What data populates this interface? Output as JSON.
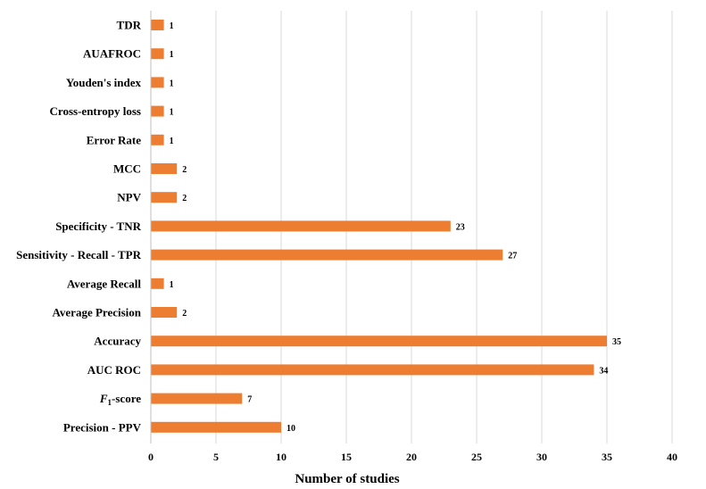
{
  "chart_data": {
    "type": "bar",
    "orientation": "horizontal",
    "categories": [
      "TDR",
      "AUAFROC",
      "Youden's index",
      "Cross-entropy loss",
      "Error Rate",
      "MCC",
      "NPV",
      "Specificity - TNR",
      "Sensitivity - Recall - TPR",
      "Average Recall",
      "Average Precision",
      "Accuracy",
      "AUC ROC",
      "F1-score",
      "Precision - PPV"
    ],
    "values": [
      1,
      1,
      1,
      1,
      1,
      2,
      2,
      23,
      27,
      1,
      2,
      35,
      34,
      7,
      10
    ],
    "value_labels": [
      "1",
      "1",
      "1",
      "1",
      "1",
      "2",
      "2",
      "23",
      "27",
      "1",
      "2",
      "35",
      "34",
      "7",
      "10"
    ],
    "title": "",
    "xlabel": "Number of studies",
    "ylabel": "",
    "xlim": [
      0,
      40
    ],
    "xticks": [
      0,
      5,
      10,
      15,
      20,
      25,
      30,
      35,
      40
    ],
    "xtick_labels": [
      "0",
      "5",
      "10",
      "15",
      "20",
      "25",
      "30",
      "35",
      "40"
    ],
    "grid": "vertical",
    "bar_color": "#ED7D31",
    "grid_color": "#D9D9D9",
    "axis_color": "#BFBFBF"
  }
}
